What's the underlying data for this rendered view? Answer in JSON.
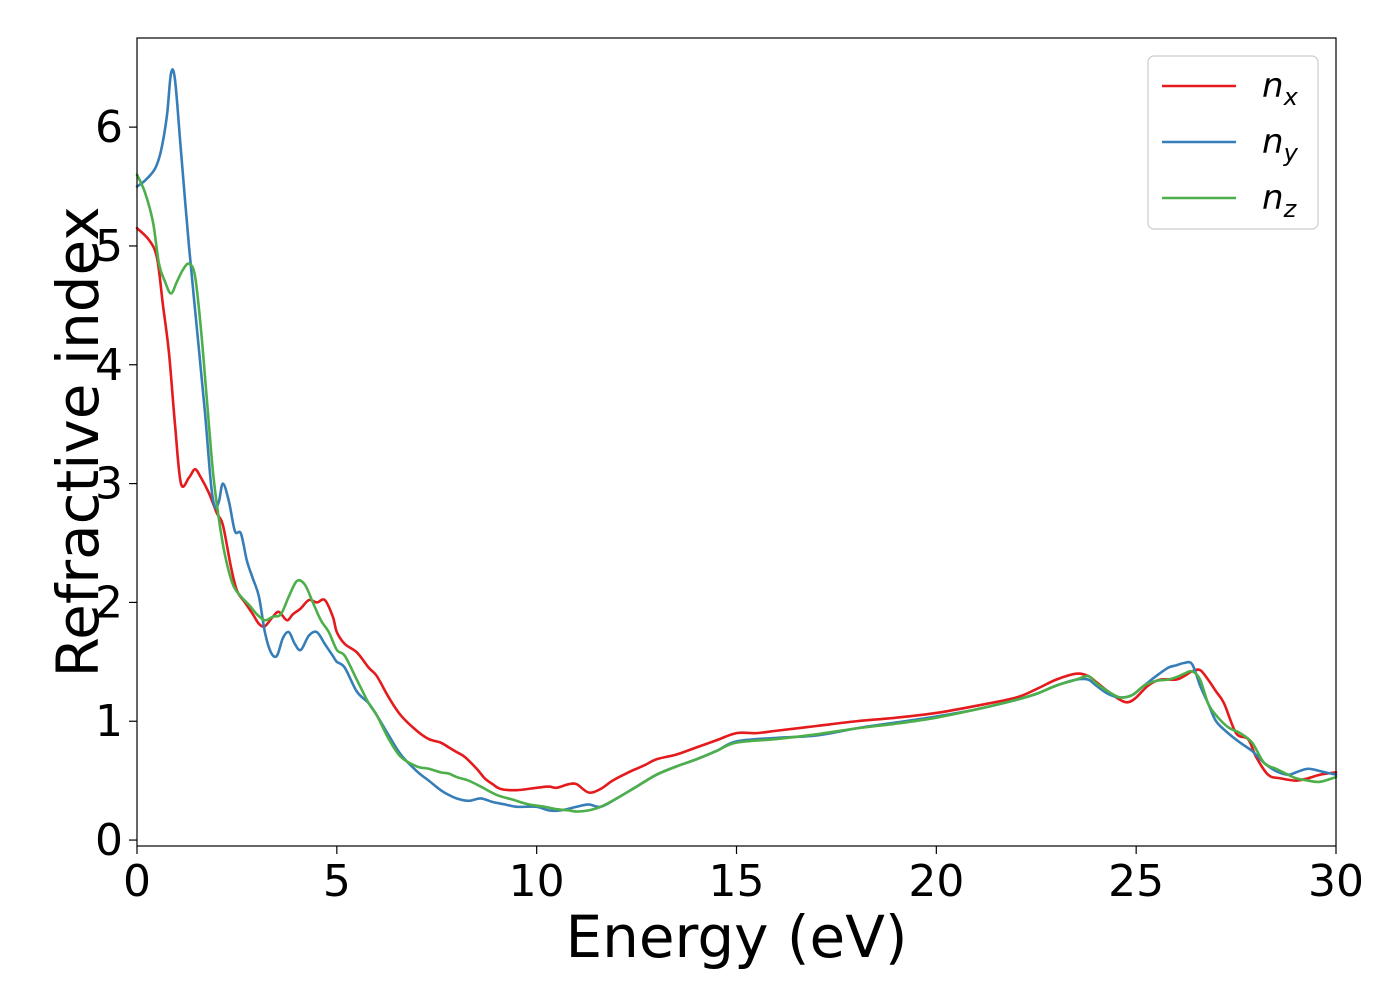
{
  "chart_data": {
    "type": "line",
    "xlabel": "Energy (eV)",
    "ylabel": "Refractive index",
    "xlim": [
      0,
      30
    ],
    "ylim": [
      -0.05,
      6.75
    ],
    "xticks": [
      "0",
      "5",
      "10",
      "15",
      "20",
      "25",
      "30"
    ],
    "yticks": [
      "0",
      "1",
      "2",
      "3",
      "4",
      "5",
      "6"
    ],
    "grid": false,
    "legend_position": "top-right",
    "series": [
      {
        "name": "n",
        "name_sub": "x",
        "color": "#e41a1c",
        "x": [
          0,
          0.3,
          0.5,
          0.65,
          0.8,
          0.95,
          1.1,
          1.3,
          1.45,
          1.6,
          1.8,
          2.0,
          2.15,
          2.35,
          2.5,
          2.7,
          2.9,
          3.05,
          3.2,
          3.4,
          3.55,
          3.75,
          3.9,
          4.1,
          4.3,
          4.5,
          4.7,
          4.9,
          5.0,
          5.2,
          5.5,
          5.8,
          6.0,
          6.3,
          6.6,
          7.0,
          7.3,
          7.6,
          7.8,
          8.0,
          8.2,
          8.5,
          8.7,
          8.9,
          9.1,
          9.5,
          10.0,
          10.3,
          10.5,
          10.8,
          11.0,
          11.3,
          11.6,
          11.9,
          12.3,
          12.7,
          13.0,
          13.5,
          14.0,
          14.5,
          15.0,
          15.5,
          16.0,
          17.0,
          18.0,
          19.0,
          20.0,
          21.0,
          22.0,
          22.5,
          23.0,
          23.5,
          23.8,
          24.0,
          24.3,
          24.6,
          24.8,
          25.0,
          25.3,
          25.6,
          26.0,
          26.2,
          26.4,
          26.6,
          26.8,
          27.0,
          27.2,
          27.5,
          27.8,
          28.0,
          28.3,
          28.6,
          29.0,
          29.3,
          29.6,
          30.0
        ],
        "values": [
          5.15,
          5.05,
          4.9,
          4.5,
          4.1,
          3.5,
          3.0,
          3.05,
          3.12,
          3.05,
          2.92,
          2.75,
          2.65,
          2.3,
          2.1,
          2.0,
          1.9,
          1.82,
          1.8,
          1.88,
          1.92,
          1.85,
          1.9,
          1.95,
          2.02,
          2.0,
          2.02,
          1.88,
          1.75,
          1.65,
          1.58,
          1.45,
          1.38,
          1.2,
          1.05,
          0.92,
          0.85,
          0.82,
          0.78,
          0.74,
          0.7,
          0.6,
          0.52,
          0.47,
          0.43,
          0.42,
          0.44,
          0.45,
          0.44,
          0.47,
          0.47,
          0.4,
          0.43,
          0.5,
          0.57,
          0.63,
          0.68,
          0.72,
          0.78,
          0.84,
          0.9,
          0.9,
          0.92,
          0.96,
          1.0,
          1.03,
          1.07,
          1.13,
          1.2,
          1.27,
          1.35,
          1.4,
          1.38,
          1.33,
          1.25,
          1.18,
          1.16,
          1.2,
          1.3,
          1.35,
          1.35,
          1.38,
          1.42,
          1.43,
          1.35,
          1.25,
          1.15,
          0.9,
          0.85,
          0.7,
          0.55,
          0.52,
          0.5,
          0.52,
          0.55,
          0.57
        ]
      },
      {
        "name": "n",
        "name_sub": "y",
        "color": "#377eb8",
        "x": [
          0,
          0.2,
          0.45,
          0.6,
          0.75,
          0.85,
          0.95,
          1.1,
          1.3,
          1.5,
          1.7,
          1.85,
          1.95,
          2.05,
          2.15,
          2.3,
          2.45,
          2.6,
          2.75,
          2.9,
          3.05,
          3.2,
          3.35,
          3.5,
          3.65,
          3.8,
          3.95,
          4.1,
          4.3,
          4.5,
          4.7,
          4.9,
          5.0,
          5.2,
          5.5,
          5.8,
          6.0,
          6.3,
          6.6,
          7.0,
          7.3,
          7.6,
          7.8,
          8.0,
          8.3,
          8.6,
          8.9,
          9.2,
          9.5,
          10.0,
          10.3,
          10.6,
          11.0,
          11.3,
          11.6,
          12.0,
          12.5,
          13.0,
          13.5,
          14.0,
          14.5,
          15.0,
          16.0,
          17.0,
          18.0,
          19.0,
          20.0,
          21.0,
          22.0,
          22.5,
          23.0,
          23.5,
          23.8,
          24.0,
          24.3,
          24.6,
          24.9,
          25.2,
          25.5,
          25.8,
          26.0,
          26.2,
          26.4,
          26.6,
          26.8,
          27.0,
          27.3,
          27.6,
          27.9,
          28.2,
          28.5,
          28.8,
          29.0,
          29.3,
          29.6,
          30.0
        ],
        "values": [
          5.5,
          5.55,
          5.65,
          5.8,
          6.1,
          6.45,
          6.4,
          5.8,
          5.0,
          4.3,
          3.6,
          3.0,
          2.8,
          2.85,
          3.0,
          2.85,
          2.6,
          2.58,
          2.35,
          2.2,
          2.05,
          1.75,
          1.58,
          1.55,
          1.7,
          1.75,
          1.65,
          1.6,
          1.72,
          1.75,
          1.65,
          1.55,
          1.5,
          1.45,
          1.25,
          1.15,
          1.05,
          0.88,
          0.72,
          0.58,
          0.5,
          0.42,
          0.38,
          0.35,
          0.33,
          0.35,
          0.32,
          0.3,
          0.28,
          0.28,
          0.25,
          0.25,
          0.28,
          0.3,
          0.28,
          0.35,
          0.45,
          0.55,
          0.62,
          0.68,
          0.75,
          0.83,
          0.86,
          0.88,
          0.94,
          0.99,
          1.04,
          1.1,
          1.18,
          1.23,
          1.3,
          1.35,
          1.35,
          1.3,
          1.23,
          1.2,
          1.22,
          1.3,
          1.38,
          1.45,
          1.47,
          1.49,
          1.48,
          1.3,
          1.15,
          1.0,
          0.9,
          0.82,
          0.75,
          0.65,
          0.58,
          0.55,
          0.57,
          0.6,
          0.58,
          0.55
        ]
      },
      {
        "name": "n",
        "name_sub": "z",
        "color": "#4daf4a",
        "x": [
          0,
          0.2,
          0.4,
          0.55,
          0.7,
          0.85,
          1.0,
          1.15,
          1.3,
          1.45,
          1.6,
          1.75,
          1.9,
          2.05,
          2.2,
          2.4,
          2.6,
          2.8,
          3.0,
          3.2,
          3.4,
          3.6,
          3.8,
          4.0,
          4.2,
          4.4,
          4.6,
          4.8,
          5.0,
          5.2,
          5.5,
          5.8,
          6.0,
          6.3,
          6.6,
          7.0,
          7.3,
          7.6,
          7.8,
          8.0,
          8.3,
          8.6,
          9.0,
          9.4,
          9.8,
          10.2,
          10.5,
          10.8,
          11.0,
          11.3,
          11.6,
          12.0,
          12.5,
          13.0,
          13.5,
          14.0,
          14.5,
          15.0,
          16.0,
          17.0,
          18.0,
          19.0,
          20.0,
          21.0,
          22.0,
          22.5,
          23.0,
          23.5,
          23.8,
          24.0,
          24.3,
          24.6,
          24.9,
          25.2,
          25.5,
          25.8,
          26.0,
          26.2,
          26.4,
          26.6,
          26.8,
          27.0,
          27.3,
          27.6,
          27.9,
          28.2,
          28.5,
          28.8,
          29.0,
          29.3,
          29.6,
          30.0
        ],
        "values": [
          5.6,
          5.45,
          5.2,
          4.85,
          4.7,
          4.6,
          4.7,
          4.8,
          4.85,
          4.75,
          4.3,
          3.7,
          3.1,
          2.7,
          2.4,
          2.15,
          2.05,
          1.98,
          1.9,
          1.85,
          1.88,
          1.9,
          2.05,
          2.18,
          2.15,
          2.0,
          1.85,
          1.75,
          1.6,
          1.55,
          1.35,
          1.15,
          1.05,
          0.85,
          0.7,
          0.62,
          0.6,
          0.57,
          0.56,
          0.53,
          0.5,
          0.45,
          0.38,
          0.34,
          0.3,
          0.28,
          0.26,
          0.25,
          0.24,
          0.25,
          0.28,
          0.35,
          0.45,
          0.55,
          0.62,
          0.68,
          0.75,
          0.82,
          0.85,
          0.89,
          0.94,
          0.98,
          1.03,
          1.1,
          1.18,
          1.23,
          1.3,
          1.35,
          1.38,
          1.32,
          1.25,
          1.2,
          1.22,
          1.3,
          1.34,
          1.35,
          1.37,
          1.4,
          1.42,
          1.35,
          1.15,
          1.05,
          0.95,
          0.9,
          0.82,
          0.65,
          0.6,
          0.55,
          0.52,
          0.5,
          0.49,
          0.53
        ]
      }
    ]
  }
}
